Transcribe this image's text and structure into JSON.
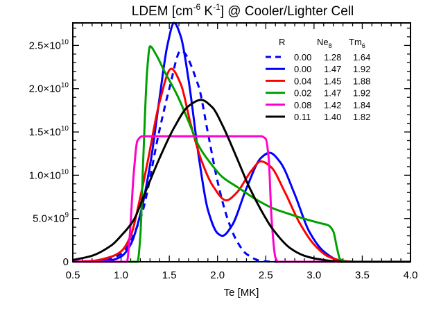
{
  "chart_data": {
    "type": "line",
    "title": "LDEM [cm^-6 K^-1] @ Cooler/Lighter Cell",
    "title_parts": {
      "a": "LDEM [cm",
      "e1": "-6",
      "b": " K",
      "e2": "-1",
      "c": "] @ Cooler/Lighter Cell"
    },
    "xlabel": "Te [MK]",
    "ylabel": "",
    "xlim": [
      0.5,
      4.0
    ],
    "ylim": [
      0,
      27600000000.0
    ],
    "grid": false,
    "legend_placement": "top-right",
    "x_ticks": [
      {
        "value": 0.5,
        "label": "0.5"
      },
      {
        "value": 1.0,
        "label": "1.0"
      },
      {
        "value": 1.5,
        "label": "1.5"
      },
      {
        "value": 2.0,
        "label": "2.0"
      },
      {
        "value": 2.5,
        "label": "2.5"
      },
      {
        "value": 3.0,
        "label": "3.0"
      },
      {
        "value": 3.5,
        "label": "3.5"
      },
      {
        "value": 4.0,
        "label": "4.0"
      }
    ],
    "y_ticks": [
      {
        "value": 0,
        "mant": "0",
        "exp": ""
      },
      {
        "value": 5000000000.0,
        "mant": "5.0×10",
        "exp": "9"
      },
      {
        "value": 10000000000.0,
        "mant": "1.0×10",
        "exp": "10"
      },
      {
        "value": 15000000000.0,
        "mant": "1.5×10",
        "exp": "10"
      },
      {
        "value": 20000000000.0,
        "mant": "2.0×10",
        "exp": "10"
      },
      {
        "value": 25000000000.0,
        "mant": "2.5×10",
        "exp": "10"
      }
    ],
    "legend_header": {
      "r": "R",
      "ne": "Ne",
      "ne_sub": "8",
      "tm": "Tm",
      "tm_sub": "6"
    },
    "series": [
      {
        "R": "0.00",
        "Ne8": "1.28",
        "Tm6": "1.64",
        "color": "#0000ff",
        "dashed": true,
        "points": [
          [
            0.5,
            0
          ],
          [
            0.8,
            100000000.0
          ],
          [
            1.0,
            900000000.0
          ],
          [
            1.2,
            5000000000.0
          ],
          [
            1.4,
            15300000000.0
          ],
          [
            1.5,
            20000000000.0
          ],
          [
            1.62,
            24400000000.0
          ],
          [
            1.8,
            20400000000.0
          ],
          [
            1.9,
            14900000000.0
          ],
          [
            2.0,
            9300000000.0
          ],
          [
            2.1,
            5100000000.0
          ],
          [
            2.2,
            2400000000.0
          ],
          [
            2.3,
            900000000.0
          ],
          [
            2.45,
            100000000.0
          ],
          [
            2.6,
            0
          ],
          [
            4.0,
            0
          ]
        ]
      },
      {
        "R": "0.00",
        "Ne8": "1.47",
        "Tm6": "1.92",
        "color": "#0000ff",
        "dashed": false,
        "points": [
          [
            0.5,
            0
          ],
          [
            0.9,
            200000000.0
          ],
          [
            1.0,
            600000000.0
          ],
          [
            1.1,
            2000000000.0
          ],
          [
            1.2,
            5500000000.0
          ],
          [
            1.31,
            11800000000.0
          ],
          [
            1.4,
            19000000000.0
          ],
          [
            1.48,
            25000000000.0
          ],
          [
            1.55,
            27600000000.0
          ],
          [
            1.62,
            26000000000.0
          ],
          [
            1.7,
            21000000000.0
          ],
          [
            1.81,
            11800000000.0
          ],
          [
            1.9,
            6000000000.0
          ],
          [
            2.0,
            3300000000.0
          ],
          [
            2.05,
            3000000000.0
          ],
          [
            2.15,
            4200000000.0
          ],
          [
            2.3,
            8500000000.0
          ],
          [
            2.45,
            12000000000.0
          ],
          [
            2.54,
            12600000000.0
          ],
          [
            2.65,
            11500000000.0
          ],
          [
            2.8,
            7800000000.0
          ],
          [
            2.95,
            3500000000.0
          ],
          [
            3.1,
            1200000000.0
          ],
          [
            3.25,
            200000000.0
          ],
          [
            3.4,
            0
          ],
          [
            4.0,
            0
          ]
        ]
      },
      {
        "R": "0.04",
        "Ne8": "1.45",
        "Tm6": "1.88",
        "color": "#ff0000",
        "dashed": false,
        "points": [
          [
            0.5,
            0
          ],
          [
            0.7,
            100000000.0
          ],
          [
            0.9,
            600000000.0
          ],
          [
            1.0,
            1200000000.0
          ],
          [
            1.1,
            3000000000.0
          ],
          [
            1.2,
            7500000000.0
          ],
          [
            1.28,
            11800000000.0
          ],
          [
            1.4,
            18500000000.0
          ],
          [
            1.52,
            22300000000.0
          ],
          [
            1.62,
            20500000000.0
          ],
          [
            1.72,
            16000000000.0
          ],
          [
            1.83,
            11800000000.0
          ],
          [
            1.95,
            8800000000.0
          ],
          [
            2.09,
            7100000000.0
          ],
          [
            2.2,
            8000000000.0
          ],
          [
            2.35,
            10500000000.0
          ],
          [
            2.45,
            11600000000.0
          ],
          [
            2.55,
            11000000000.0
          ],
          [
            2.7,
            8000000000.0
          ],
          [
            2.85,
            4500000000.0
          ],
          [
            3.0,
            2000000000.0
          ],
          [
            3.15,
            600000000.0
          ],
          [
            3.3,
            100000000.0
          ],
          [
            3.4,
            0
          ],
          [
            4.0,
            0
          ]
        ]
      },
      {
        "R": "0.02",
        "Ne8": "1.47",
        "Tm6": "1.92",
        "color": "#00a000",
        "dashed": false,
        "points": [
          [
            0.5,
            0
          ],
          [
            1.17,
            0
          ],
          [
            1.2,
            3000000000.0
          ],
          [
            1.23,
            11800000000.0
          ],
          [
            1.27,
            22000000000.0
          ],
          [
            1.3,
            24900000000.0
          ],
          [
            1.36,
            24000000000.0
          ],
          [
            1.45,
            22000000000.0
          ],
          [
            1.58,
            19300000000.0
          ],
          [
            1.7,
            16200000000.0
          ],
          [
            1.81,
            13300000000.0
          ],
          [
            1.92,
            11500000000.0
          ],
          [
            2.05,
            9800000000.0
          ],
          [
            2.21,
            8600000000.0
          ],
          [
            2.4,
            7200000000.0
          ],
          [
            2.57,
            6200000000.0
          ],
          [
            2.75,
            5500000000.0
          ],
          [
            2.89,
            5000000000.0
          ],
          [
            3.05,
            4500000000.0
          ],
          [
            3.15,
            4200000000.0
          ],
          [
            3.2,
            3500000000.0
          ],
          [
            3.24,
            1500000000.0
          ],
          [
            3.27,
            300000000.0
          ],
          [
            3.35,
            0
          ],
          [
            4.0,
            0
          ]
        ]
      },
      {
        "R": "0.08",
        "Ne8": "1.42",
        "Tm6": "1.84",
        "color": "#ff00cc",
        "dashed": false,
        "points": [
          [
            0.5,
            0
          ],
          [
            1.06,
            0
          ],
          [
            1.09,
            3000000000.0
          ],
          [
            1.13,
            10000000000.0
          ],
          [
            1.17,
            14000000000.0
          ],
          [
            1.22,
            14500000000.0
          ],
          [
            2.45,
            14500000000.0
          ],
          [
            2.5,
            14200000000.0
          ],
          [
            2.53,
            12000000000.0
          ],
          [
            2.56,
            5000000000.0
          ],
          [
            2.6,
            500000000.0
          ],
          [
            2.63,
            0
          ],
          [
            4.0,
            0
          ]
        ]
      },
      {
        "R": "0.11",
        "Ne8": "1.40",
        "Tm6": "1.82",
        "color": "#000000",
        "dashed": false,
        "points": [
          [
            0.5,
            200000000.0
          ],
          [
            0.7,
            700000000.0
          ],
          [
            0.9,
            1900000000.0
          ],
          [
            1.0,
            3000000000.0
          ],
          [
            1.13,
            4800000000.0
          ],
          [
            1.25,
            8000000000.0
          ],
          [
            1.4,
            12000000000.0
          ],
          [
            1.55,
            15500000000.0
          ],
          [
            1.7,
            18000000000.0
          ],
          [
            1.83,
            18700000000.0
          ],
          [
            1.95,
            17800000000.0
          ],
          [
            2.05,
            15800000000.0
          ],
          [
            2.2,
            12000000000.0
          ],
          [
            2.33,
            8600000000.0
          ],
          [
            2.45,
            6000000000.0
          ],
          [
            2.57,
            3800000000.0
          ],
          [
            2.75,
            1600000000.0
          ],
          [
            2.9,
            700000000.0
          ],
          [
            3.05,
            300000000.0
          ],
          [
            3.3,
            0
          ],
          [
            4.0,
            0
          ]
        ]
      }
    ]
  }
}
